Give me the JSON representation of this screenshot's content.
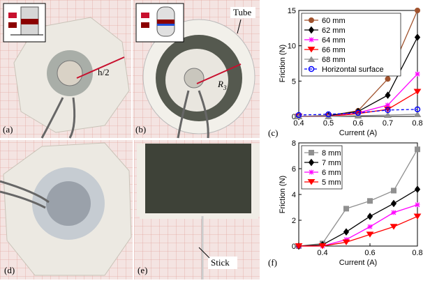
{
  "photos": {
    "a": {
      "label": "(a)",
      "annotation": "h/2"
    },
    "b": {
      "label": "(b)",
      "annotation": "Tube",
      "radius": {
        "symbol": "R",
        "subscript": "3"
      }
    },
    "d": {
      "label": "(d)"
    },
    "e": {
      "label": "(e)",
      "annotation": "Stick"
    }
  },
  "chart_data": [
    {
      "type": "line",
      "panel_label": "(c)",
      "x_label": "Current (A)",
      "y_label": "Friction (N)",
      "x": [
        0.4,
        0.5,
        0.6,
        0.7,
        0.8
      ],
      "xlim": [
        0.4,
        0.8
      ],
      "xticks": [
        0.4,
        0.5,
        0.6,
        0.7,
        0.8
      ],
      "ylim": [
        0,
        15
      ],
      "yticks": [
        0,
        5,
        10,
        15
      ],
      "legend": "upper left",
      "series": [
        {
          "name": "60 mm",
          "color": "#a0522d",
          "marker": "circle",
          "values": [
            0,
            0.1,
            0.8,
            5.3,
            15
          ]
        },
        {
          "name": "62 mm",
          "color": "#000000",
          "marker": "diamond",
          "values": [
            0,
            0.1,
            0.7,
            3.0,
            11.2
          ]
        },
        {
          "name": "64 mm",
          "color": "#ff00ff",
          "marker": "plus",
          "values": [
            0,
            0,
            0.5,
            1.6,
            6.0
          ]
        },
        {
          "name": "66 mm",
          "color": "#ff0000",
          "marker": "triangle-down",
          "values": [
            0,
            0,
            0.4,
            1.0,
            3.5
          ]
        },
        {
          "name": "68 mm",
          "color": "#909090",
          "marker": "triangle-up",
          "values": [
            0,
            0,
            0.1,
            0.2,
            0.3
          ]
        },
        {
          "name": "Horizontal surface",
          "color": "#0000ff",
          "marker": "hollow-circle",
          "linestyle": "dashed",
          "values": [
            0.2,
            0.3,
            0.5,
            0.9,
            1.0
          ]
        }
      ]
    },
    {
      "type": "line",
      "panel_label": "(f)",
      "x_label": "Current (A)",
      "y_label": "Friction (N)",
      "x": [
        0.3,
        0.4,
        0.5,
        0.6,
        0.7,
        0.8
      ],
      "xlim": [
        0.3,
        0.8
      ],
      "xticks": [
        0.4,
        0.6,
        0.8
      ],
      "ylim": [
        0,
        8
      ],
      "yticks": [
        0,
        2,
        4,
        6,
        8
      ],
      "legend": "upper left",
      "series": [
        {
          "name": "8 mm",
          "color": "#909090",
          "marker": "square",
          "values": [
            0,
            0.2,
            2.9,
            3.5,
            4.3,
            7.5
          ]
        },
        {
          "name": "7 mm",
          "color": "#000000",
          "marker": "diamond",
          "values": [
            0,
            0.1,
            1.1,
            2.3,
            3.3,
            4.4
          ]
        },
        {
          "name": "6 mm",
          "color": "#ff00ff",
          "marker": "plus",
          "values": [
            0,
            0,
            0.5,
            1.5,
            2.6,
            3.2
          ]
        },
        {
          "name": "5 mm",
          "color": "#ff0000",
          "marker": "triangle-down",
          "values": [
            0,
            0,
            0.3,
            0.9,
            1.5,
            2.3
          ]
        }
      ]
    }
  ]
}
